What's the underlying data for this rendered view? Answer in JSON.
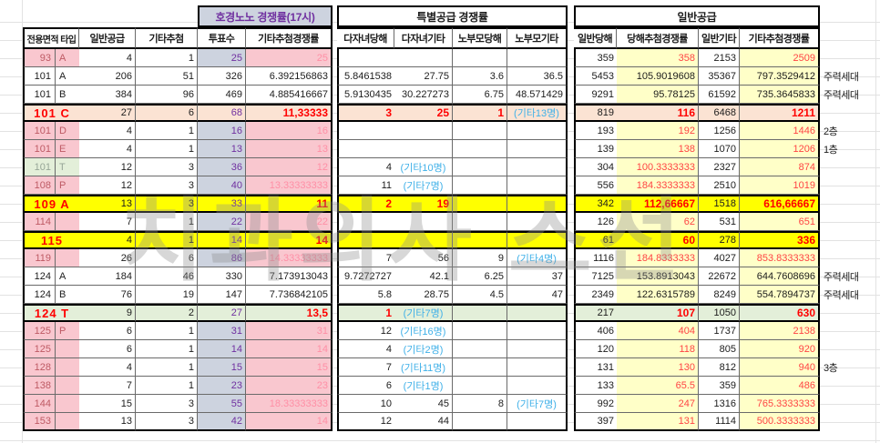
{
  "watermark": "치과의사 스선",
  "colors": {
    "pink_bg": "#F9C7CF",
    "dark_red_text": "#BE5A64",
    "blue_gray_bg": "#CDD3DF",
    "purple_text": "#7030A0",
    "pink_text": "#FF8FA6",
    "light_yellow_bg": "#FFFFC8",
    "red_text": "#FF4444",
    "bold_red_text": "#FF0000",
    "peach_bg": "#FBE3D3",
    "yellow_bg": "#FFFF00",
    "green_bg": "#E3EFD9",
    "green_label_text": "#97A697",
    "cyan_text": "#3FB0E8"
  },
  "header": {
    "group_left": "호경노노 경쟁률(17시)",
    "group_special": "특별공급 경쟁률",
    "group_general": "일반공급",
    "columns": [
      "전용면적 타입",
      "일반공급",
      "기타추첨",
      "투표수",
      "기타추첨경쟁률",
      "다자녀당해",
      "다자녀기타",
      "노부모당해",
      "노부모기타",
      "일반당해",
      "당해추첨경쟁률",
      "일반기타",
      "기타추첨경쟁률"
    ]
  },
  "rows": [
    {
      "area": "93",
      "type": "A",
      "style": "pink",
      "v": [
        "4",
        "1",
        "25",
        "25",
        "",
        "",
        "",
        "",
        "359",
        "358",
        "2153",
        "2509"
      ],
      "note": ""
    },
    {
      "area": "101",
      "type": "A",
      "style": "plain",
      "v": [
        "206",
        "51",
        "326",
        "6.392156863",
        "5.8461538",
        "27.75",
        "3.6",
        "36.5",
        "5453",
        "105.9019608",
        "35367",
        "797.3529412"
      ],
      "note": "주력세대"
    },
    {
      "area": "101",
      "type": "B",
      "style": "plain",
      "v": [
        "384",
        "96",
        "469",
        "4.885416667",
        "5.9130435",
        "30.227273",
        "6.75",
        "48.571429",
        "9291",
        "95.78125",
        "61592",
        "735.3645833"
      ],
      "note": "주력세대"
    },
    {
      "area": "101",
      "type": "C",
      "style": "peach",
      "v": [
        "27",
        "6",
        "68",
        "11,33333",
        "3",
        "25",
        "1",
        "(기타13명)",
        "819",
        "116",
        "6468",
        "1211"
      ],
      "note": ""
    },
    {
      "area": "101",
      "type": "D",
      "style": "pink",
      "v": [
        "4",
        "1",
        "16",
        "16",
        "",
        "",
        "",
        "",
        "193",
        "192",
        "1256",
        "1446"
      ],
      "note": "2층"
    },
    {
      "area": "101",
      "type": "E",
      "style": "pink",
      "v": [
        "4",
        "1",
        "13",
        "13",
        "",
        "",
        "",
        "",
        "139",
        "138",
        "1070",
        "1206"
      ],
      "note": "1층"
    },
    {
      "area": "101",
      "type": "T",
      "style": "greenlabel",
      "v": [
        "12",
        "3",
        "36",
        "12",
        "4",
        "(기타10명)",
        "",
        "",
        "304",
        "100.3333333",
        "2327",
        "874"
      ],
      "note": ""
    },
    {
      "area": "108",
      "type": "P",
      "style": "pink",
      "v": [
        "12",
        "3",
        "40",
        "13.33333333",
        "11",
        "(기타7명)",
        "",
        "",
        "556",
        "184.3333333",
        "2510",
        "1019"
      ],
      "note": ""
    },
    {
      "area": "109",
      "type": "A",
      "style": "yellow",
      "v": [
        "13",
        "3",
        "33",
        "11",
        "2",
        "19",
        "",
        "",
        "342",
        "112,66667",
        "1518",
        "616,66667"
      ],
      "note": ""
    },
    {
      "area": "114",
      "type": "",
      "style": "pink",
      "v": [
        "7",
        "1",
        "22",
        "22",
        "",
        "",
        "",
        "",
        "126",
        "62",
        "531",
        "651"
      ],
      "note": ""
    },
    {
      "area": "115",
      "type": "",
      "style": "yellow",
      "v": [
        "4",
        "1",
        "14",
        "14",
        "",
        "",
        "",
        "",
        "61",
        "60",
        "278",
        "336"
      ],
      "note": ""
    },
    {
      "area": "119",
      "type": "",
      "style": "pink",
      "v": [
        "26",
        "6",
        "86",
        "14.33333333",
        "7",
        "56",
        "9",
        "(기타4명)",
        "1116",
        "184.8333333",
        "4027",
        "853.8333333"
      ],
      "note": ""
    },
    {
      "area": "124",
      "type": "A",
      "style": "plain",
      "v": [
        "184",
        "46",
        "330",
        "7.173913043",
        "9.7272727",
        "42.1",
        "6.25",
        "37",
        "7125",
        "153.8913043",
        "22672",
        "644.7608696"
      ],
      "note": "주력세대"
    },
    {
      "area": "124",
      "type": "B",
      "style": "plain",
      "v": [
        "76",
        "19",
        "147",
        "7.736842105",
        "5.8",
        "28.75",
        "4.5",
        "47",
        "2349",
        "122.6315789",
        "8249",
        "554.7894737"
      ],
      "note": "주력세대"
    },
    {
      "area": "124",
      "type": "T",
      "style": "green",
      "v": [
        "9",
        "2",
        "27",
        "13,5",
        "1",
        "(기타7명)",
        "",
        "",
        "217",
        "107",
        "1050",
        "630"
      ],
      "note": ""
    },
    {
      "area": "125",
      "type": "P",
      "style": "pink",
      "v": [
        "6",
        "1",
        "31",
        "31",
        "12",
        "(기타16명)",
        "",
        "",
        "406",
        "404",
        "1737",
        "2138"
      ],
      "note": ""
    },
    {
      "area": "125",
      "type": "",
      "style": "pink",
      "v": [
        "6",
        "1",
        "14",
        "14",
        "4",
        "(기타2명)",
        "",
        "",
        "120",
        "118",
        "805",
        "920"
      ],
      "note": ""
    },
    {
      "area": "128",
      "type": "",
      "style": "pink",
      "v": [
        "4",
        "1",
        "15",
        "15",
        "7",
        "(기타11명)",
        "",
        "",
        "131",
        "130",
        "812",
        "940"
      ],
      "note": "3층"
    },
    {
      "area": "138",
      "type": "",
      "style": "pink",
      "v": [
        "7",
        "1",
        "23",
        "23",
        "6",
        "(기타1명)",
        "",
        "",
        "133",
        "65.5",
        "359",
        "486"
      ],
      "note": ""
    },
    {
      "area": "144",
      "type": "",
      "style": "pink",
      "v": [
        "15",
        "3",
        "55",
        "18.33333333",
        "10",
        "45",
        "8",
        "(기타7명)",
        "992",
        "247",
        "1316",
        "765.3333333"
      ],
      "note": ""
    },
    {
      "area": "153",
      "type": "",
      "style": "pink",
      "v": [
        "13",
        "3",
        "42",
        "14",
        "12",
        "44",
        "",
        "",
        "397",
        "131",
        "1114",
        "500.3333333"
      ],
      "note": ""
    }
  ]
}
